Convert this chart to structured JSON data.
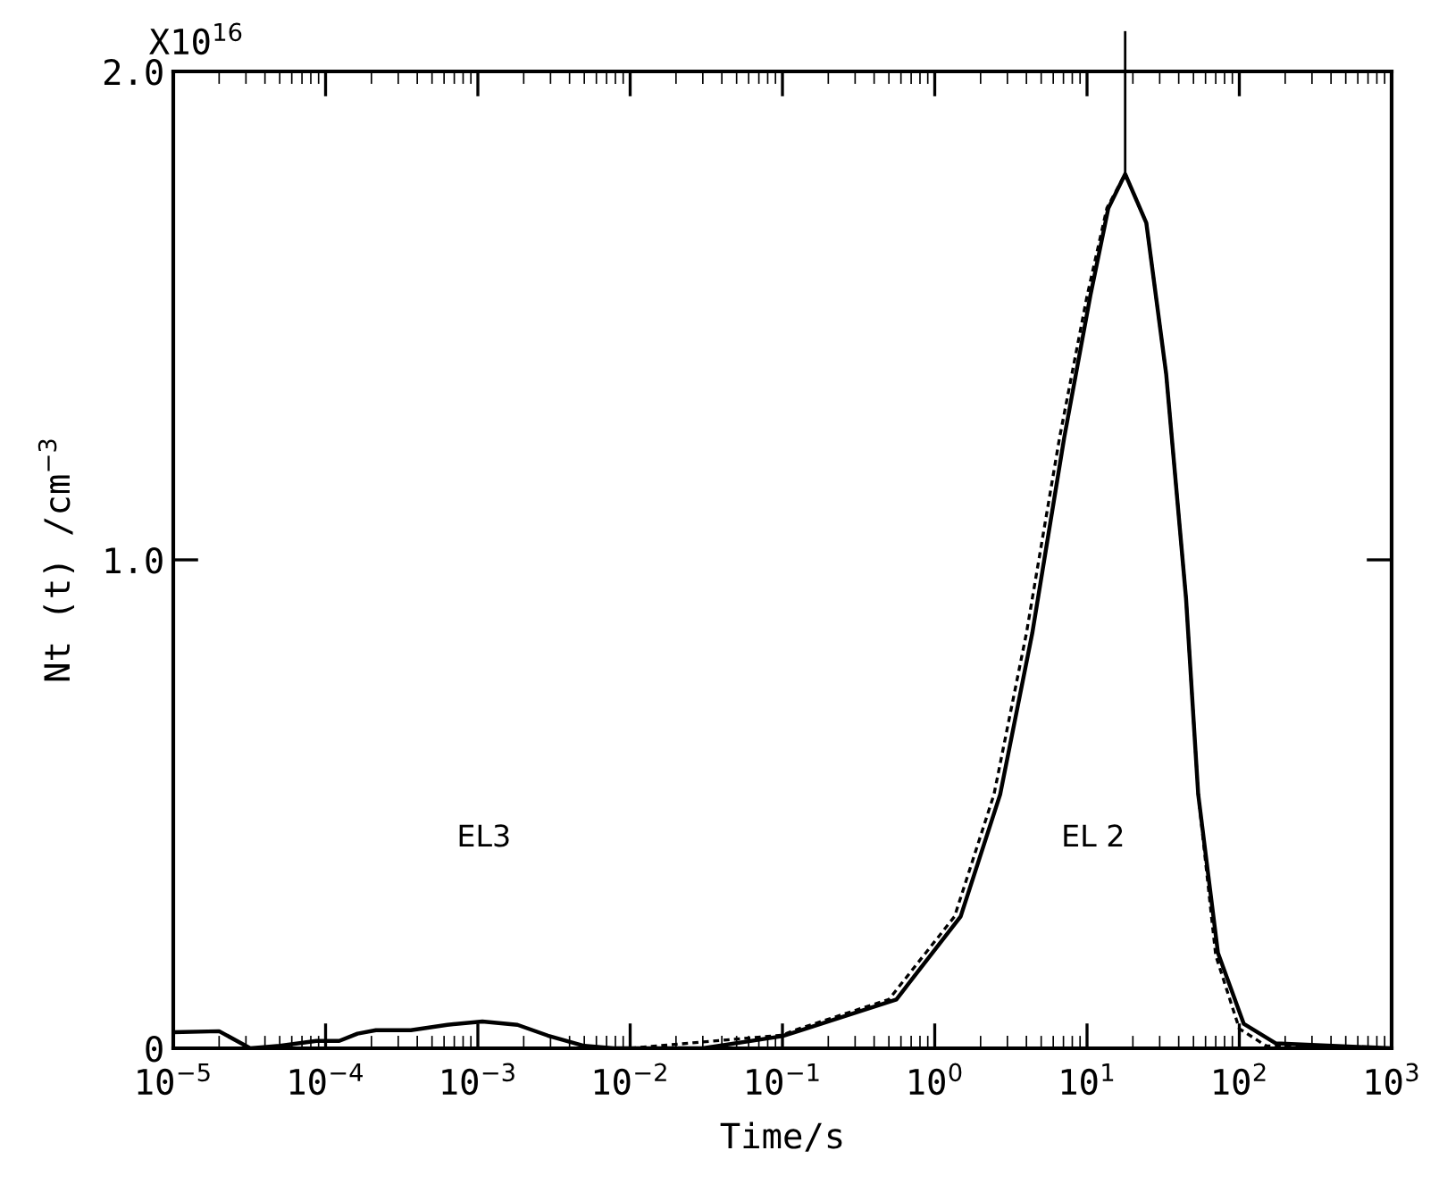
{
  "chart_data": {
    "type": "line",
    "xlabel": "Time/s",
    "ylabel": "Nt (t) /cm$^{−3}$",
    "log": "x",
    "grid": false,
    "legend": false,
    "marker": "none",
    "xlim": [
      1e-05,
      1000
    ],
    "xticks": [
      {
        "value": 1e-05,
        "label": "10$^{−5}$"
      },
      {
        "value": 0.0001,
        "label": "10$^{−4}$"
      },
      {
        "value": 0.001,
        "label": "10$^{−3}$"
      },
      {
        "value": 0.01,
        "label": "10$^{−2}$"
      },
      {
        "value": 0.1,
        "label": "10$^{−1}$"
      },
      {
        "value": 1,
        "label": "10$^{0}$"
      },
      {
        "value": 10,
        "label": "10$^{1}$"
      },
      {
        "value": 100,
        "label": "10$^{2}$"
      },
      {
        "value": 1000,
        "label": "10$^{3}$"
      }
    ],
    "ylim": [
      0,
      2.0
    ],
    "yticks": [
      0,
      {
        "value": 1.0,
        "label": "1.0"
      },
      {
        "value": 2.0,
        "label": "2.0"
      }
    ],
    "series": [
      {
        "color": "#000000",
        "line_style": "solid",
        "x": [
          1e-05,
          2e-05,
          3.2e-05,
          5e-05,
          8.7e-05,
          0.000123,
          0.000162,
          0.000214,
          0.000363,
          0.00063,
          0.00107,
          0.00182,
          0.00288,
          0.005,
          0.0078,
          0.03,
          0.1,
          0.132,
          0.56,
          1.48,
          2.69,
          4.37,
          7.08,
          10.5,
          13.8,
          17.8,
          24.5,
          33.1,
          44.7,
          53.7,
          72.4,
          107,
          174,
          1000
        ],
        "values": [
          0.033,
          0.035,
          0.0,
          0.005,
          0.015,
          0.015,
          0.03,
          0.037,
          0.037,
          0.048,
          0.055,
          0.048,
          0.026,
          0.005,
          0.0,
          0.0,
          0.025,
          0.037,
          0.1,
          0.27,
          0.52,
          0.85,
          1.25,
          1.54,
          1.72,
          1.79,
          1.69,
          1.38,
          0.92,
          0.52,
          0.195,
          0.05,
          0.01,
          0.0
        ]
      },
      {
        "color": "#000000",
        "line_style": "dotted",
        "x": [
          0.01,
          0.1,
          0.12,
          0.5,
          1.35,
          2.45,
          4.0,
          6.6,
          10.0,
          13.5,
          17.8,
          24.5,
          33.1,
          44.7,
          53.7,
          70.0,
          100,
          150,
          1000
        ],
        "values": [
          0.0,
          0.027,
          0.037,
          0.1,
          0.27,
          0.52,
          0.85,
          1.25,
          1.54,
          1.72,
          1.79,
          1.69,
          1.38,
          0.92,
          0.52,
          0.19,
          0.04,
          0.005,
          0.0
        ]
      }
    ],
    "ref_lines": [
      {
        "axis": "x",
        "value": 17.8,
        "color": "#000000"
      }
    ],
    "annotations": [
      "X10$^{16}$",
      "EL3",
      "EL 2"
    ]
  }
}
